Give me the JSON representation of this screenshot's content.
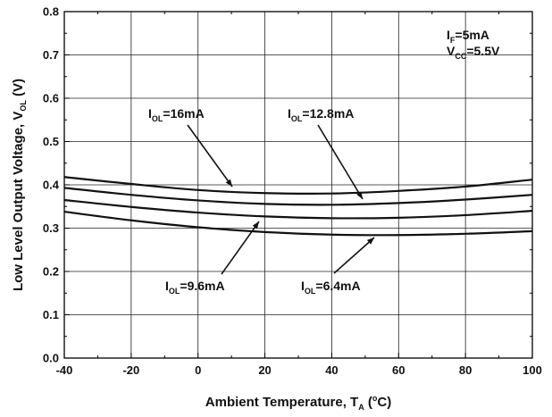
{
  "chart_data": {
    "type": "line",
    "xlabel": {
      "main": "Ambient Temperature, T",
      "sub": "A",
      "open": " (",
      "sup": "o",
      "close": "C)"
    },
    "ylabel": {
      "main": "Low Level Output Voltage, V",
      "sub": "OL",
      "unit": " (V)"
    },
    "xlim": [
      -40,
      100
    ],
    "ylim": [
      0,
      0.8
    ],
    "x_ticks": [
      "-40",
      "-20",
      "0",
      "20",
      "40",
      "60",
      "80",
      "100"
    ],
    "y_ticks": [
      "0.0",
      "0.1",
      "0.2",
      "0.3",
      "0.4",
      "0.5",
      "0.6",
      "0.7",
      "0.8"
    ],
    "grid": true,
    "conditions": [
      {
        "main": "I",
        "sub": "F",
        "rest": "=5mA"
      },
      {
        "main": "V",
        "sub": "CC",
        "rest": "=5.5V"
      }
    ],
    "x": [
      -40,
      -20,
      0,
      20,
      40,
      60,
      80,
      100
    ],
    "series": [
      {
        "name": "IOL=16mA",
        "label": {
          "main": "I",
          "sub": "OL",
          "rest": "=16mA"
        },
        "values": [
          0.418,
          0.402,
          0.388,
          0.381,
          0.38,
          0.386,
          0.396,
          0.412
        ]
      },
      {
        "name": "IOL=12.8mA",
        "label": {
          "main": "I",
          "sub": "OL",
          "rest": "=12.8mA"
        },
        "values": [
          0.393,
          0.377,
          0.364,
          0.356,
          0.354,
          0.358,
          0.366,
          0.377
        ]
      },
      {
        "name": "IOL=9.6mA",
        "label": {
          "main": "I",
          "sub": "OL",
          "rest": "=9.6mA"
        },
        "values": [
          0.365,
          0.349,
          0.336,
          0.327,
          0.323,
          0.324,
          0.33,
          0.34
        ]
      },
      {
        "name": "IOL=6.4mA",
        "label": {
          "main": "I",
          "sub": "OL",
          "rest": "=6.4mA"
        },
        "values": [
          0.338,
          0.318,
          0.302,
          0.291,
          0.285,
          0.284,
          0.287,
          0.293
        ]
      }
    ]
  }
}
